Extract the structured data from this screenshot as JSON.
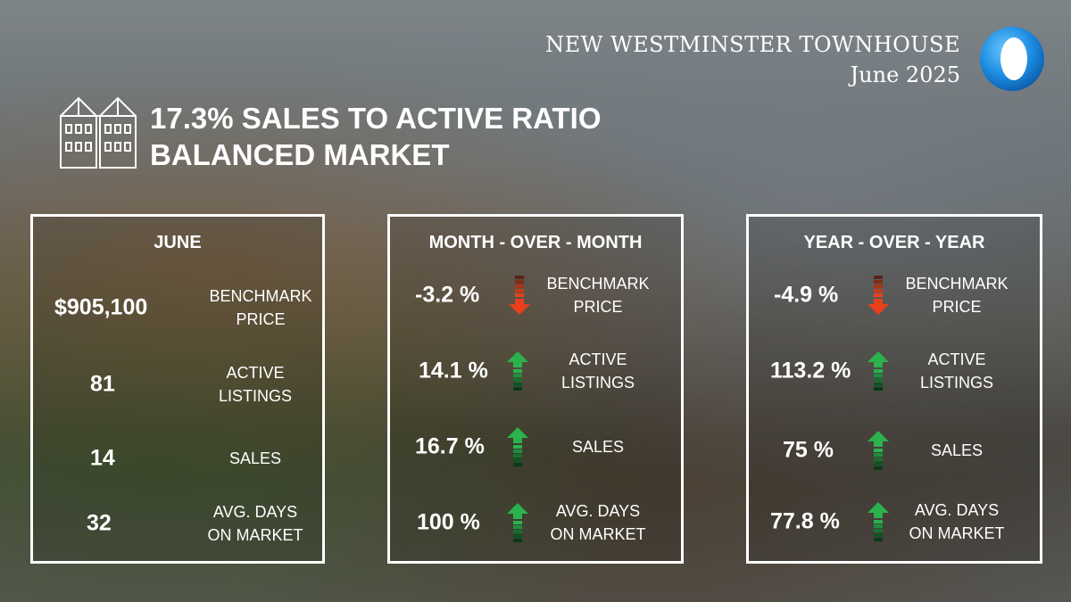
{
  "header": {
    "title": "NEW WESTMINSTER TOWNHOUSE",
    "subtitle": "June 2025"
  },
  "headline": {
    "line1": "17.3% SALES TO ACTIVE RATIO",
    "line2": "BALANCED MARKET"
  },
  "colors": {
    "up": "#2bb24c",
    "down": "#e8401c",
    "border": "#ffffff",
    "logo": "#1b8be0"
  },
  "cards": {
    "june": {
      "title": "JUNE",
      "rows": [
        {
          "value": "$905,100",
          "label1": "BENCHMARK",
          "label2": "PRICE"
        },
        {
          "value": "81",
          "label1": "ACTIVE",
          "label2": "LISTINGS"
        },
        {
          "value": "14",
          "label1": "SALES",
          "label2": ""
        },
        {
          "value": "32",
          "label1": "AVG. DAYS",
          "label2": "ON MARKET"
        }
      ]
    },
    "mom": {
      "title": "MONTH - OVER - MONTH",
      "rows": [
        {
          "value": "-3.2 %",
          "direction": "down",
          "label1": "BENCHMARK",
          "label2": "PRICE"
        },
        {
          "value": "14.1 %",
          "direction": "up",
          "label1": "ACTIVE",
          "label2": "LISTINGS"
        },
        {
          "value": "16.7 %",
          "direction": "up",
          "label1": "SALES",
          "label2": ""
        },
        {
          "value": "100 %",
          "direction": "up",
          "label1": "AVG. DAYS",
          "label2": "ON MARKET"
        }
      ]
    },
    "yoy": {
      "title": "YEAR - OVER - YEAR",
      "rows": [
        {
          "value": "-4.9 %",
          "direction": "down",
          "label1": "BENCHMARK",
          "label2": "PRICE"
        },
        {
          "value": "113.2 %",
          "direction": "up",
          "label1": "ACTIVE",
          "label2": "LISTINGS"
        },
        {
          "value": "75 %",
          "direction": "up",
          "label1": "SALES",
          "label2": ""
        },
        {
          "value": "77.8 %",
          "direction": "up",
          "label1": "AVG. DAYS",
          "label2": "ON MARKET"
        }
      ]
    }
  }
}
